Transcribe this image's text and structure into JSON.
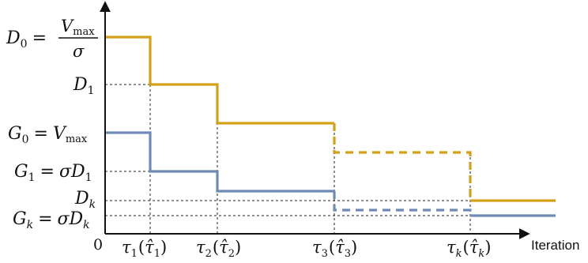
{
  "axis": {
    "origin": "0",
    "x_label": "Iteration"
  },
  "y_labels": {
    "d0": {
      "lhs": "D",
      "sub": "0",
      "eq": "=",
      "num_var": "V",
      "num_sub": "max",
      "den": "σ"
    },
    "d1": {
      "var": "D",
      "sub": "1"
    },
    "g0": {
      "lhs": "G",
      "sub": "0",
      "eq": "=",
      "rhs_var": "V",
      "rhs_sub": "max"
    },
    "g1": {
      "lhs": "G",
      "sub": "1",
      "eq": "=",
      "rhs": "σD",
      "rhs_sub": "1"
    },
    "dk": {
      "var": "D",
      "sub": "k"
    },
    "gk": {
      "lhs": "G",
      "sub": "k",
      "eq": "=",
      "rhs": "σD",
      "rhs_sub": "k"
    }
  },
  "x_ticks": [
    {
      "tau": "τ",
      "sub": "1",
      "hat": "τ̂",
      "hat_sub": "1"
    },
    {
      "tau": "τ",
      "sub": "2",
      "hat": "τ̂",
      "hat_sub": "2"
    },
    {
      "tau": "τ",
      "sub": "3",
      "hat": "τ̂",
      "hat_sub": "3"
    },
    {
      "tau": "τ",
      "sub": "k",
      "hat": "τ̂",
      "hat_sub": "k"
    }
  ],
  "colors": {
    "D_curve": "#D4A019",
    "G_curve": "#6F8BB5",
    "axis": "#111111",
    "guide": "#222222"
  }
}
